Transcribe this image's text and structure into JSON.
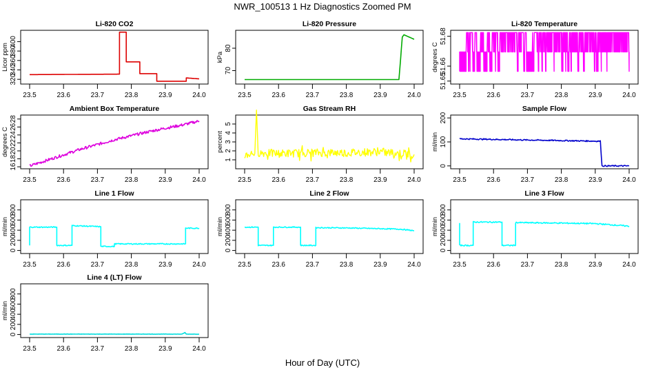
{
  "figure": {
    "title": "NWR_100513  1 Hz Diagnostics Zoomed PM",
    "xlabel": "Hour of Day (UTC)"
  },
  "chart_data": [
    {
      "type": "line",
      "title": "Li-820 CO2",
      "ylabel": "Licor ppm",
      "color": "#dd0000",
      "xlim": [
        23.5,
        24.0
      ],
      "ylim": [
        310,
        424
      ],
      "xticks": [
        "23.5",
        "23.6",
        "23.7",
        "23.8",
        "23.9",
        "24.0"
      ],
      "yticks": [
        320,
        340,
        360,
        380,
        400
      ],
      "series": [
        {
          "x": [
            23.5,
            23.765,
            23.765,
            23.78,
            23.785,
            23.785,
            23.82,
            23.825,
            23.825,
            23.87,
            23.875,
            23.875,
            23.958,
            23.962,
            23.962,
            24.0
          ],
          "y": [
            330,
            331,
            420,
            420,
            420,
            357,
            357,
            357,
            332,
            332,
            332,
            316,
            316,
            316,
            323,
            321
          ]
        }
      ]
    },
    {
      "type": "line",
      "title": "Li-820 Pressure",
      "ylabel": "kPa",
      "color": "#00aa00",
      "xlim": [
        23.5,
        24.0
      ],
      "ylim": [
        64,
        88
      ],
      "xticks": [
        "23.5",
        "23.6",
        "23.7",
        "23.8",
        "23.9",
        "24.0"
      ],
      "yticks": [
        70,
        80
      ],
      "series": [
        {
          "x": [
            23.5,
            23.7,
            23.91,
            23.95,
            23.955,
            23.96,
            23.965,
            23.97,
            24.0
          ],
          "y": [
            66,
            66,
            66,
            66,
            66,
            75,
            85,
            86,
            84
          ]
        }
      ]
    },
    {
      "type": "line",
      "title": "Li-820 Temperature",
      "ylabel": "degrees C",
      "color": "#ff00ff",
      "xlim": [
        23.5,
        24.0
      ],
      "ylim": [
        51.648,
        51.684
      ],
      "xticks": [
        "23.5",
        "23.6",
        "23.7",
        "23.8",
        "23.9",
        "24.0"
      ],
      "yticks": [
        51.65,
        51.66,
        51.68
      ],
      "ytick_labels": [
        "51.65",
        "51.66",
        "51.68"
      ],
      "levels": [
        51.6565,
        51.6695,
        51.6825
      ],
      "series": [
        {
          "x": [
            23.5,
            24.0
          ],
          "y": [
            51.6565,
            51.6825
          ]
        }
      ]
    },
    {
      "type": "line",
      "title": "Ambient Box Temperature",
      "ylabel": "degrees C",
      "color": "#dd00dd",
      "xlim": [
        23.5,
        24.0
      ],
      "ylim": [
        15.5,
        29
      ],
      "xticks": [
        "23.5",
        "23.6",
        "23.7",
        "23.8",
        "23.9",
        "24.0"
      ],
      "yticks": [
        16,
        18,
        20,
        22,
        24,
        26,
        28
      ],
      "series": [
        {
          "x": [
            23.5,
            23.55,
            23.6,
            23.65,
            23.7,
            23.75,
            23.8,
            23.85,
            23.9,
            23.95,
            24.0
          ],
          "y": [
            16.2,
            17.6,
            19.0,
            20.4,
            21.6,
            22.8,
            23.8,
            24.8,
            25.7,
            26.5,
            27.5
          ]
        }
      ]
    },
    {
      "type": "line",
      "title": "Gas Stream RH",
      "ylabel": "percent",
      "color": "#ffff00",
      "xlim": [
        23.5,
        24.0
      ],
      "ylim": [
        0,
        6
      ],
      "xticks": [
        "23.5",
        "23.6",
        "23.7",
        "23.8",
        "23.9",
        "24.0"
      ],
      "yticks": [
        1,
        2,
        3,
        4,
        5
      ],
      "series": [
        {
          "x": [
            23.5,
            23.53,
            23.535,
            23.54,
            23.6,
            23.7,
            23.8,
            23.9,
            24.0
          ],
          "y": [
            1.5,
            1.8,
            5.7,
            1.8,
            1.7,
            1.8,
            1.8,
            1.9,
            1.6
          ]
        }
      ]
    },
    {
      "type": "line",
      "title": "Sample Flow",
      "ylabel": "ml/min",
      "color": "#0000cc",
      "xlim": [
        23.5,
        24.0
      ],
      "ylim": [
        -12,
        212
      ],
      "xticks": [
        "23.5",
        "23.6",
        "23.7",
        "23.8",
        "23.9",
        "24.0"
      ],
      "yticks": [
        0,
        100,
        200
      ],
      "series": [
        {
          "x": [
            23.5,
            23.7,
            23.91,
            23.915,
            23.92,
            24.0
          ],
          "y": [
            113,
            108,
            103,
            103,
            0,
            0
          ]
        }
      ]
    },
    {
      "type": "line",
      "title": "Line 1 Flow",
      "ylabel": "ml/min",
      "color": "#00ffff",
      "xlim": [
        23.5,
        24.0
      ],
      "ylim": [
        -60,
        1000
      ],
      "xticks": [
        "23.5",
        "23.6",
        "23.7",
        "23.8",
        "23.9",
        "24.0"
      ],
      "yticks": [
        0,
        200,
        400,
        600,
        800
      ],
      "series": [
        {
          "x": [
            23.5,
            23.5,
            23.58,
            23.58,
            23.625,
            23.625,
            23.71,
            23.71,
            23.75,
            23.75,
            23.96,
            23.96,
            24.0
          ],
          "y": [
            100,
            460,
            460,
            100,
            100,
            490,
            470,
            80,
            80,
            130,
            130,
            440,
            440
          ]
        }
      ]
    },
    {
      "type": "line",
      "title": "Line 2 Flow",
      "ylabel": "ml/min",
      "color": "#00ffff",
      "xlim": [
        23.5,
        24.0
      ],
      "ylim": [
        -60,
        1000
      ],
      "xticks": [
        "23.5",
        "23.6",
        "23.7",
        "23.8",
        "23.9",
        "24.0"
      ],
      "yticks": [
        0,
        200,
        400,
        600,
        800
      ],
      "series": [
        {
          "x": [
            23.5,
            23.54,
            23.54,
            23.585,
            23.585,
            23.665,
            23.665,
            23.71,
            23.71,
            23.8,
            23.9,
            23.96,
            24.0
          ],
          "y": [
            460,
            460,
            100,
            100,
            460,
            460,
            100,
            100,
            450,
            445,
            430,
            420,
            390
          ]
        }
      ]
    },
    {
      "type": "line",
      "title": "Line 3 Flow",
      "ylabel": "ml/min",
      "color": "#00ffff",
      "xlim": [
        23.5,
        24.0
      ],
      "ylim": [
        -60,
        1000
      ],
      "xticks": [
        "23.5",
        "23.6",
        "23.7",
        "23.8",
        "23.9",
        "24.0"
      ],
      "yticks": [
        0,
        200,
        400,
        600,
        800
      ],
      "series": [
        {
          "x": [
            23.5,
            23.5,
            23.54,
            23.54,
            23.625,
            23.625,
            23.665,
            23.665,
            23.8,
            23.9,
            23.96,
            24.0
          ],
          "y": [
            540,
            100,
            100,
            560,
            560,
            100,
            100,
            550,
            540,
            530,
            500,
            480
          ]
        }
      ]
    },
    {
      "type": "line",
      "title": "Line 4 (LT) Flow",
      "ylabel": "ml/min",
      "color": "#00dddd",
      "xlim": [
        23.5,
        24.0
      ],
      "ylim": [
        -60,
        1000
      ],
      "xticks": [
        "23.5",
        "23.6",
        "23.7",
        "23.8",
        "23.9",
        "24.0"
      ],
      "yticks": [
        0,
        200,
        400,
        600,
        800
      ],
      "series": [
        {
          "x": [
            23.5,
            23.95,
            23.958,
            23.962,
            23.97,
            24.0
          ],
          "y": [
            8,
            8,
            40,
            8,
            8,
            8
          ]
        }
      ]
    }
  ]
}
